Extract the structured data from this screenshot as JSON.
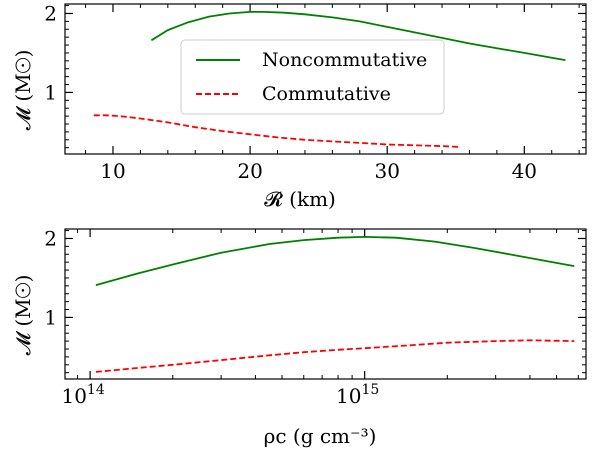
{
  "chart_data": [
    {
      "type": "line",
      "xlabel": "𝓡 (km)",
      "ylabel": "𝓜 (M☉)",
      "xlim": [
        6.5,
        44.5
      ],
      "ylim": [
        0.22,
        2.12
      ],
      "x_scale": "linear",
      "x_ticks": [
        10,
        20,
        30,
        40
      ],
      "x_tick_labels": [
        "10",
        "20",
        "30",
        "40"
      ],
      "y_ticks": [
        1,
        2
      ],
      "y_tick_labels": [
        "1",
        "2"
      ],
      "grid": false,
      "legend_position": "upper-center",
      "series": [
        {
          "name": "Noncommutative",
          "color": "#008000",
          "style": "solid",
          "x": [
            12.8,
            14.0,
            15.5,
            17.0,
            18.5,
            20.0,
            21.0,
            22.5,
            24.0,
            26.0,
            28.0,
            30.0,
            32.0,
            34.0,
            36.0,
            38.0,
            40.0,
            42.0,
            43.0
          ],
          "y": [
            1.66,
            1.79,
            1.89,
            1.96,
            2.0,
            2.02,
            2.02,
            2.01,
            1.99,
            1.95,
            1.9,
            1.83,
            1.76,
            1.69,
            1.62,
            1.56,
            1.5,
            1.44,
            1.41
          ]
        },
        {
          "name": "Commutative",
          "color": "#ff0000",
          "style": "dashed",
          "x": [
            8.6,
            9.5,
            10.5,
            12.0,
            14.0,
            16.0,
            18.0,
            20.0,
            22.0,
            24.0,
            26.0,
            28.0,
            30.0,
            32.0,
            34.0,
            35.2
          ],
          "y": [
            0.71,
            0.71,
            0.7,
            0.67,
            0.62,
            0.56,
            0.51,
            0.47,
            0.43,
            0.4,
            0.38,
            0.36,
            0.34,
            0.33,
            0.32,
            0.31
          ]
        }
      ]
    },
    {
      "type": "line",
      "xlabel": "ρc (g cm⁻³)",
      "ylabel": "𝓜 (M☉)",
      "xlim": [
        81000000000000.0,
        6400000000000000.0
      ],
      "ylim": [
        0.22,
        2.12
      ],
      "x_scale": "log",
      "x_ticks": [
        100000000000000.0,
        1000000000000000.0
      ],
      "x_tick_labels": [
        "10",
        "10"
      ],
      "x_tick_exponents": [
        "14",
        "15"
      ],
      "y_ticks": [
        1,
        2
      ],
      "y_tick_labels": [
        "1",
        "2"
      ],
      "grid": false,
      "series": [
        {
          "name": "Noncommutative",
          "color": "#008000",
          "style": "solid",
          "x": [
            105000000000000.0,
            150000000000000.0,
            200000000000000.0,
            300000000000000.0,
            450000000000000.0,
            600000000000000.0,
            800000000000000.0,
            1000000000000000.0,
            1300000000000000.0,
            1800000000000000.0,
            2500000000000000.0,
            3500000000000000.0,
            4500000000000000.0,
            5800000000000000.0
          ],
          "y": [
            1.41,
            1.56,
            1.67,
            1.82,
            1.93,
            1.98,
            2.01,
            2.02,
            2.01,
            1.96,
            1.88,
            1.79,
            1.72,
            1.65
          ]
        },
        {
          "name": "Commutative",
          "color": "#ff0000",
          "style": "dashed",
          "x": [
            105000000000000.0,
            150000000000000.0,
            200000000000000.0,
            300000000000000.0,
            450000000000000.0,
            600000000000000.0,
            800000000000000.0,
            1000000000000000.0,
            1500000000000000.0,
            2000000000000000.0,
            3000000000000000.0,
            4000000000000000.0,
            5800000000000000.0
          ],
          "y": [
            0.31,
            0.36,
            0.4,
            0.46,
            0.52,
            0.56,
            0.59,
            0.61,
            0.65,
            0.68,
            0.7,
            0.71,
            0.7
          ]
        }
      ]
    }
  ]
}
